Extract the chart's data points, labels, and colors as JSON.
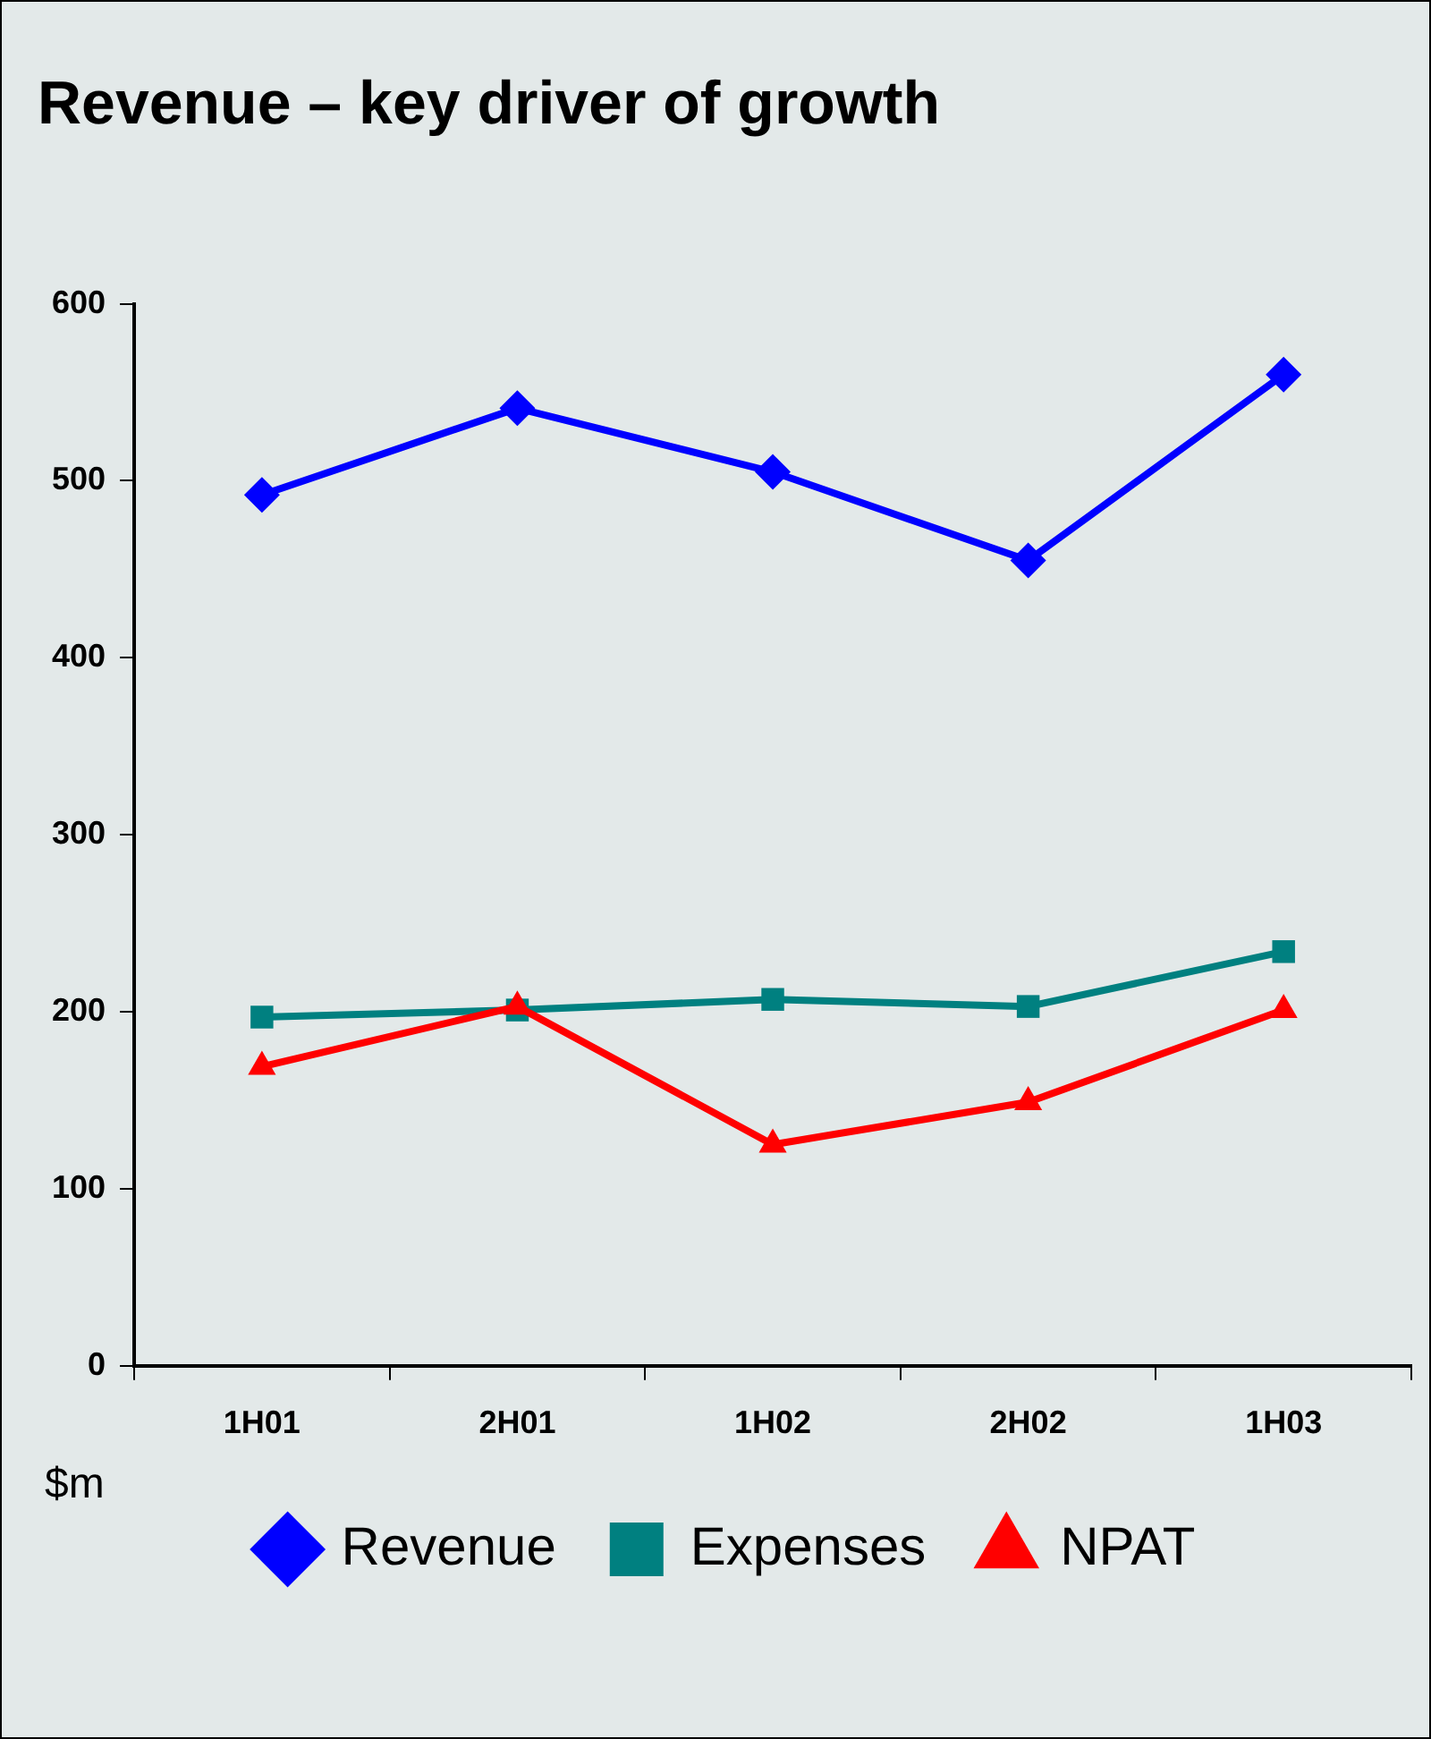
{
  "chart_data": {
    "type": "line",
    "title": "Revenue – key driver of growth",
    "ylabel": "$m",
    "categories": [
      "1H01",
      "2H01",
      "1H02",
      "2H02",
      "1H03"
    ],
    "series": [
      {
        "name": "Revenue",
        "color": "#0000ff",
        "marker": "diamond",
        "values": [
          492,
          541,
          505,
          455,
          560
        ]
      },
      {
        "name": "Expenses",
        "color": "#008080",
        "marker": "square",
        "values": [
          197,
          201,
          207,
          203,
          234
        ]
      },
      {
        "name": "NPAT",
        "color": "#ff0000",
        "marker": "triangle",
        "values": [
          169,
          203,
          125,
          149,
          201
        ]
      }
    ],
    "ylim": [
      0,
      600
    ],
    "yticks": [
      0,
      100,
      200,
      300,
      400,
      500,
      600
    ],
    "grid": false,
    "legend": "bottom",
    "line_style": "solid"
  }
}
